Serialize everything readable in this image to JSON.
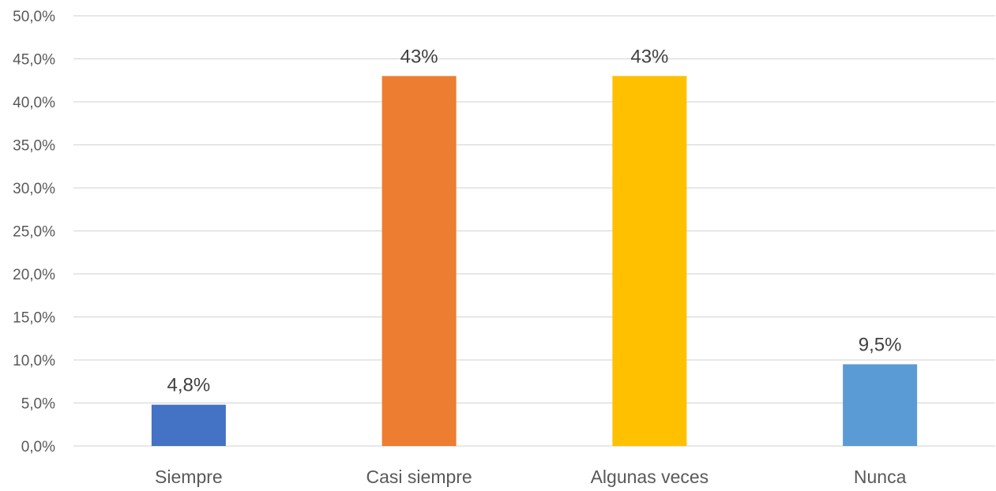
{
  "chart_data": {
    "type": "bar",
    "categories": [
      "Siempre",
      "Casi siempre",
      "Algunas veces",
      "Nunca"
    ],
    "values": [
      4.8,
      43,
      43,
      9.5
    ],
    "data_labels": [
      "4,8%",
      "43%",
      "43%",
      "9,5%"
    ],
    "colors": [
      "#4472C4",
      "#ED7D31",
      "#FFC000",
      "#5B9BD5"
    ],
    "y_ticks": [
      "0,0%",
      "5,0%",
      "10,0%",
      "15,0%",
      "20,0%",
      "25,0%",
      "30,0%",
      "35,0%",
      "40,0%",
      "45,0%",
      "50,0%"
    ],
    "ylim": [
      0,
      50
    ],
    "y_step": 5,
    "title": "",
    "xlabel": "",
    "ylabel": "",
    "grid": true,
    "legend": "none"
  }
}
